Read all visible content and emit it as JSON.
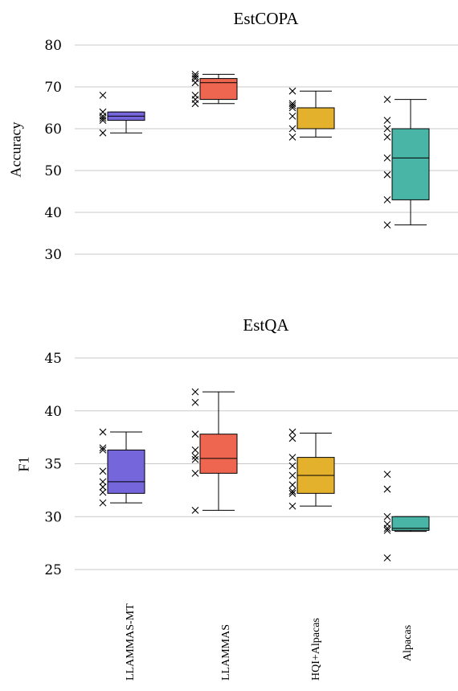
{
  "categories": [
    "LLAMMAS-MT",
    "LLAMMAS",
    "HQI+Alpacas",
    "Alpacas"
  ],
  "colors": [
    "#7566dc",
    "#ef6650",
    "#e3b12c",
    "#48b5a6"
  ],
  "chart_data": [
    {
      "type": "box",
      "title": "EstCOPA",
      "ylabel": "Accuracy",
      "ylim": [
        30,
        80
      ],
      "yticks": [
        30,
        40,
        50,
        60,
        70,
        80
      ],
      "grid": true,
      "series": [
        {
          "category": "LLAMMAS-MT",
          "whisker_low": 59,
          "q1": 62,
          "median": 63,
          "q3": 64,
          "whisker_high": 64,
          "points": [
            68,
            64,
            63,
            62.5,
            62,
            59
          ]
        },
        {
          "category": "LLAMMAS",
          "whisker_low": 66,
          "q1": 67,
          "median": 71,
          "q3": 72,
          "whisker_high": 73,
          "points": [
            73,
            72.5,
            72,
            71,
            68,
            67,
            66
          ]
        },
        {
          "category": "HQI+Alpacas",
          "whisker_low": 58,
          "q1": 60,
          "median": 65,
          "q3": 65,
          "whisker_high": 69,
          "points": [
            69,
            66,
            65.5,
            65,
            63,
            60,
            58
          ]
        },
        {
          "category": "Alpacas",
          "whisker_low": 37,
          "q1": 43,
          "median": 53,
          "q3": 60,
          "whisker_high": 67,
          "points": [
            67,
            62,
            60,
            58,
            53,
            49,
            43,
            37
          ]
        }
      ]
    },
    {
      "type": "box",
      "title": "EstQA",
      "ylabel": "F1",
      "ylim": [
        25,
        45
      ],
      "yticks": [
        25,
        30,
        35,
        40,
        45
      ],
      "grid": true,
      "series": [
        {
          "category": "LLAMMAS-MT",
          "whisker_low": 31.3,
          "q1": 32.2,
          "median": 33.3,
          "q3": 36.3,
          "whisker_high": 38,
          "points": [
            38,
            36.5,
            36.3,
            34.3,
            33.3,
            32.8,
            32.3,
            31.3
          ]
        },
        {
          "category": "LLAMMAS",
          "whisker_low": 30.6,
          "q1": 34.1,
          "median": 35.5,
          "q3": 37.8,
          "whisker_high": 41.8,
          "points": [
            41.8,
            40.8,
            37.8,
            36.3,
            35.7,
            35.4,
            34.1,
            30.6
          ]
        },
        {
          "category": "HQI+Alpacas",
          "whisker_low": 31,
          "q1": 32.2,
          "median": 33.9,
          "q3": 35.6,
          "whisker_high": 37.9,
          "points": [
            38,
            37.4,
            35.6,
            34.8,
            33.9,
            33,
            32.4,
            32.2,
            31
          ]
        },
        {
          "category": "Alpacas",
          "whisker_low": 28.6,
          "q1": 28.7,
          "median": 28.9,
          "q3": 30,
          "whisker_high": 30,
          "points": [
            34,
            32.6,
            30,
            29.3,
            28.9,
            28.7,
            26.1
          ]
        }
      ]
    }
  ]
}
